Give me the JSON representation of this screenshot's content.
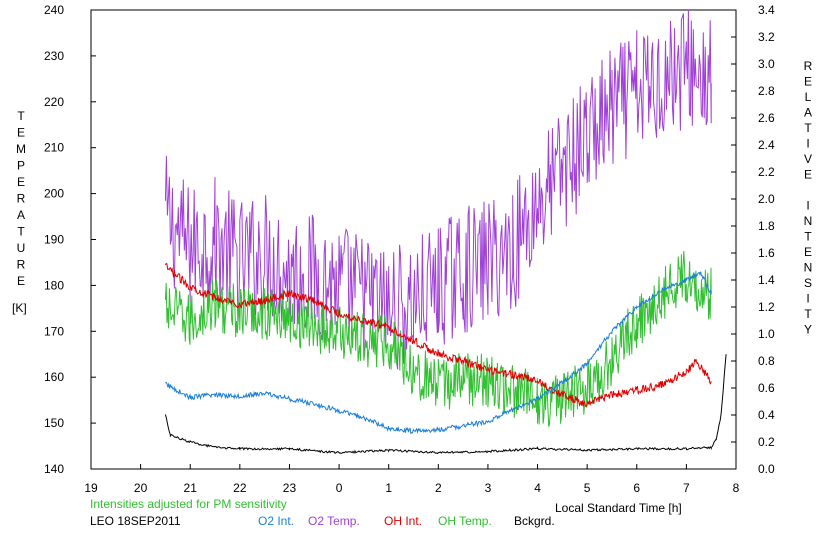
{
  "chart_data": {
    "type": "line",
    "left_axis": {
      "label_letters": [
        "T",
        "E",
        "M",
        "P",
        "E",
        "R",
        "A",
        "T",
        "U",
        "R",
        "E"
      ],
      "unit": "[K]",
      "range": [
        140,
        240
      ],
      "ticks": [
        "140",
        "150",
        "160",
        "170",
        "180",
        "190",
        "200",
        "210",
        "220",
        "230",
        "240"
      ]
    },
    "right_axis": {
      "label_letters": [
        "R",
        "E",
        "L",
        "A",
        "T",
        "I",
        "V",
        "E",
        "",
        "I",
        "N",
        "T",
        "E",
        "N",
        "S",
        "I",
        "T",
        "Y"
      ],
      "range": [
        0.0,
        3.4
      ],
      "ticks": [
        "0.0",
        "0.2",
        "0.4",
        "0.6",
        "0.8",
        "1.0",
        "1.2",
        "1.4",
        "1.6",
        "1.8",
        "2.0",
        "2.2",
        "2.4",
        "2.6",
        "2.8",
        "3.0",
        "3.2",
        "3.4"
      ]
    },
    "x_axis": {
      "label": "Local Standard Time [h]",
      "range": [
        19,
        32
      ],
      "ticks": [
        "19",
        "20",
        "21",
        "22",
        "23",
        "0",
        "1",
        "2",
        "3",
        "4",
        "5",
        "6",
        "7",
        "8"
      ]
    },
    "note": "Intensities adjusted for PM sensitivity",
    "station": "LEO 18SEP2011",
    "colors": {
      "o2_int": "#1a7fd8",
      "o2_temp": "#a040d8",
      "oh_int": "#e00000",
      "oh_temp": "#30c030",
      "bckgrd": "#000000",
      "note": "#30c030"
    },
    "series": [
      {
        "name": "O2 Int.",
        "axis": "right",
        "color_key": "o2_int",
        "points": [
          [
            20.5,
            0.63
          ],
          [
            21.0,
            0.53
          ],
          [
            21.5,
            0.55
          ],
          [
            22.0,
            0.54
          ],
          [
            22.5,
            0.56
          ],
          [
            23.0,
            0.52
          ],
          [
            23.5,
            0.48
          ],
          [
            24.0,
            0.43
          ],
          [
            24.5,
            0.38
          ],
          [
            25.0,
            0.3
          ],
          [
            25.5,
            0.28
          ],
          [
            26.0,
            0.29
          ],
          [
            26.5,
            0.32
          ],
          [
            27.0,
            0.35
          ],
          [
            27.5,
            0.44
          ],
          [
            28.0,
            0.52
          ],
          [
            28.5,
            0.64
          ],
          [
            29.0,
            0.78
          ],
          [
            29.5,
            1.02
          ],
          [
            30.0,
            1.2
          ],
          [
            30.5,
            1.32
          ],
          [
            31.0,
            1.4
          ],
          [
            31.3,
            1.45
          ],
          [
            31.5,
            1.3
          ]
        ]
      },
      {
        "name": "O2 Temp.",
        "axis": "left",
        "color_key": "o2_temp",
        "points": [
          [
            20.5,
            195
          ],
          [
            21.0,
            188
          ],
          [
            21.5,
            190
          ],
          [
            22.0,
            185
          ],
          [
            22.5,
            187
          ],
          [
            23.0,
            183
          ],
          [
            23.5,
            182
          ],
          [
            24.0,
            180
          ],
          [
            24.5,
            178
          ],
          [
            25.0,
            175
          ],
          [
            25.5,
            176
          ],
          [
            26.0,
            180
          ],
          [
            26.5,
            183
          ],
          [
            27.0,
            185
          ],
          [
            27.5,
            188
          ],
          [
            28.0,
            198
          ],
          [
            28.5,
            205
          ],
          [
            29.0,
            212
          ],
          [
            29.5,
            218
          ],
          [
            30.0,
            222
          ],
          [
            30.5,
            225
          ],
          [
            31.0,
            228
          ],
          [
            31.5,
            224
          ]
        ]
      },
      {
        "name": "OH Int.",
        "axis": "right",
        "color_key": "oh_int",
        "points": [
          [
            20.5,
            1.5
          ],
          [
            21.0,
            1.35
          ],
          [
            21.5,
            1.27
          ],
          [
            22.0,
            1.22
          ],
          [
            22.5,
            1.25
          ],
          [
            23.0,
            1.3
          ],
          [
            23.5,
            1.25
          ],
          [
            24.0,
            1.15
          ],
          [
            24.5,
            1.1
          ],
          [
            25.0,
            1.05
          ],
          [
            25.5,
            0.95
          ],
          [
            26.0,
            0.85
          ],
          [
            26.5,
            0.8
          ],
          [
            27.0,
            0.73
          ],
          [
            27.5,
            0.7
          ],
          [
            28.0,
            0.65
          ],
          [
            28.5,
            0.55
          ],
          [
            29.0,
            0.48
          ],
          [
            29.5,
            0.55
          ],
          [
            30.0,
            0.58
          ],
          [
            30.5,
            0.62
          ],
          [
            31.0,
            0.72
          ],
          [
            31.2,
            0.8
          ],
          [
            31.5,
            0.65
          ]
        ]
      },
      {
        "name": "OH Temp.",
        "axis": "left",
        "color_key": "oh_temp",
        "points": [
          [
            20.5,
            175
          ],
          [
            21.0,
            172
          ],
          [
            21.5,
            176
          ],
          [
            22.0,
            174
          ],
          [
            22.5,
            174
          ],
          [
            23.0,
            173
          ],
          [
            23.5,
            171
          ],
          [
            24.0,
            170
          ],
          [
            24.5,
            168
          ],
          [
            25.0,
            168
          ],
          [
            25.5,
            162
          ],
          [
            26.0,
            158
          ],
          [
            26.5,
            160
          ],
          [
            27.0,
            159
          ],
          [
            27.5,
            157
          ],
          [
            28.0,
            155
          ],
          [
            28.5,
            155
          ],
          [
            29.0,
            158
          ],
          [
            29.5,
            164
          ],
          [
            30.0,
            172
          ],
          [
            30.5,
            178
          ],
          [
            31.0,
            182
          ],
          [
            31.5,
            178
          ]
        ]
      },
      {
        "name": "Bckgrd.",
        "axis": "right",
        "color_key": "bckgrd",
        "points": [
          [
            20.5,
            0.4
          ],
          [
            20.6,
            0.25
          ],
          [
            21.0,
            0.2
          ],
          [
            21.5,
            0.16
          ],
          [
            22.0,
            0.15
          ],
          [
            23.0,
            0.15
          ],
          [
            24.0,
            0.12
          ],
          [
            25.0,
            0.14
          ],
          [
            26.0,
            0.12
          ],
          [
            27.0,
            0.13
          ],
          [
            28.0,
            0.15
          ],
          [
            29.0,
            0.14
          ],
          [
            30.0,
            0.15
          ],
          [
            31.0,
            0.15
          ],
          [
            31.5,
            0.16
          ],
          [
            31.6,
            0.22
          ],
          [
            31.7,
            0.4
          ],
          [
            31.8,
            0.85
          ]
        ]
      }
    ]
  }
}
